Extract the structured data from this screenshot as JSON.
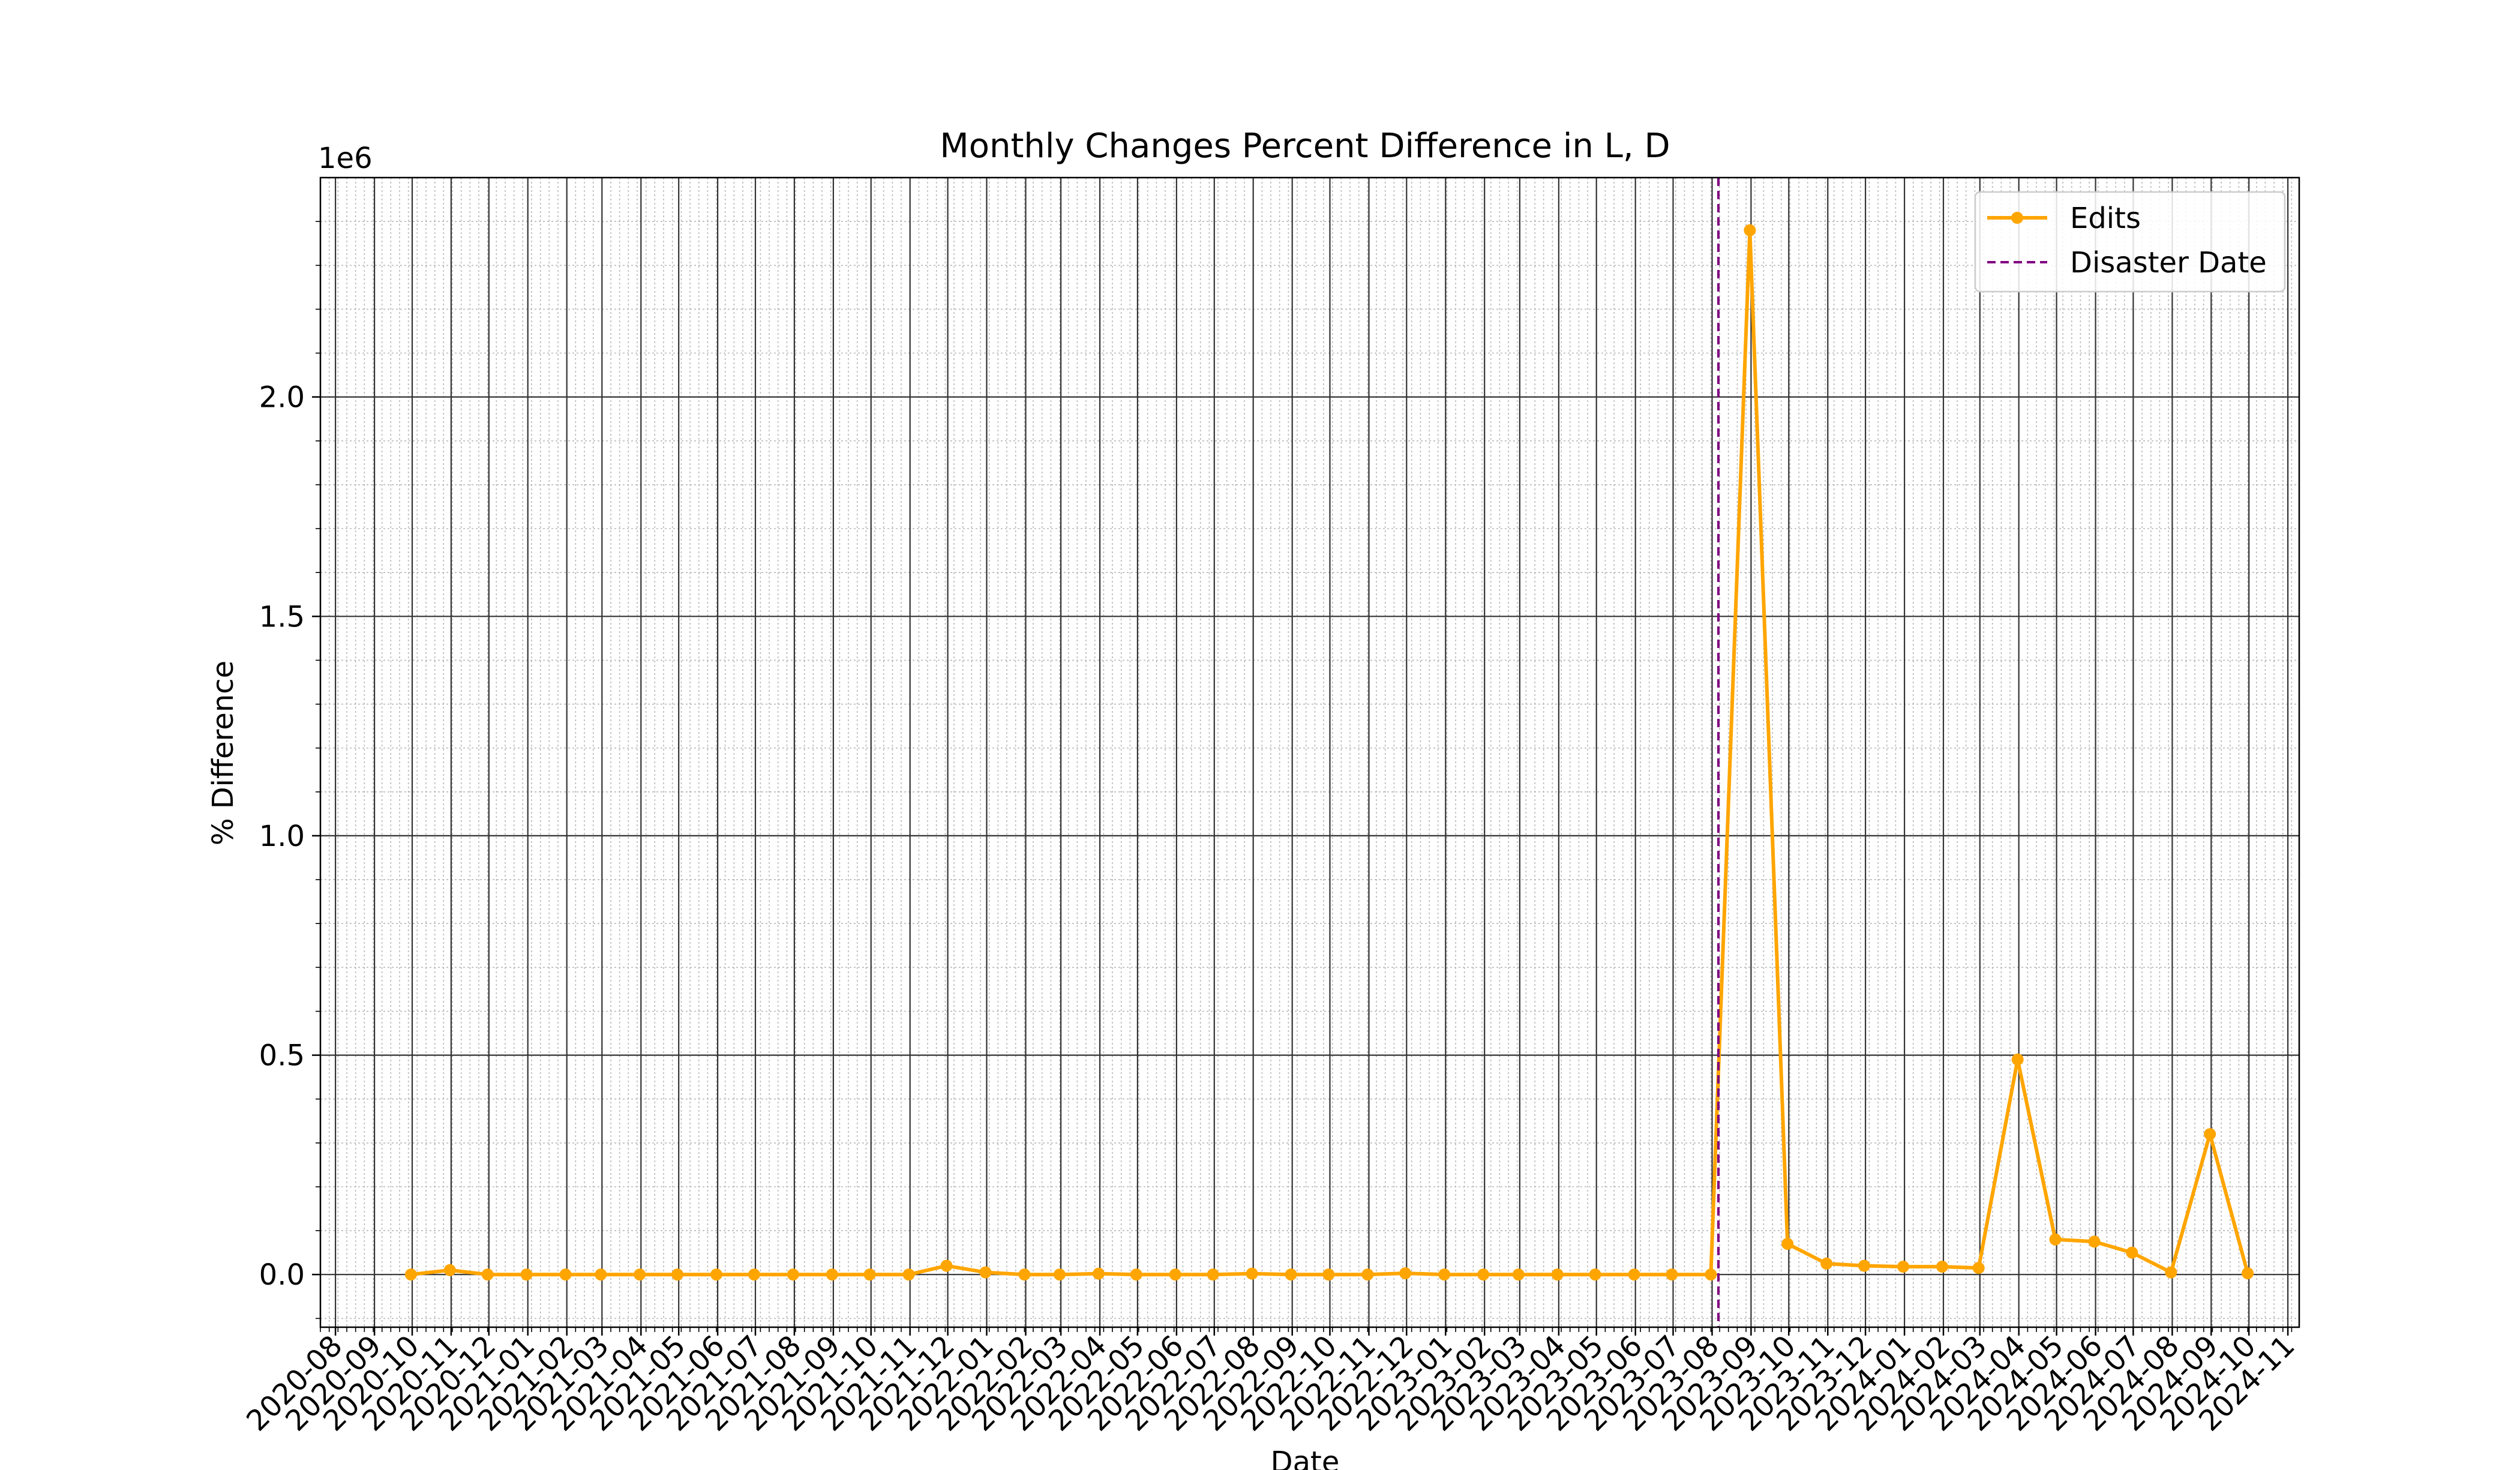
{
  "chart_data": {
    "type": "line",
    "title": "Monthly Changes Percent Difference in L, D",
    "xlabel": "Date",
    "ylabel": "% Difference",
    "y_offset_label": "1e6",
    "y_scale_factor": 1000000,
    "xlim": [
      "2020-07-20",
      "2024-11-10"
    ],
    "ylim": [
      -0.12,
      2.5
    ],
    "grid": true,
    "minor_grid": true,
    "legend_position": "top-right",
    "x_tick_labels": [
      "2020-08",
      "2020-09",
      "2020-10",
      "2020-11",
      "2020-12",
      "2021-01",
      "2021-02",
      "2021-03",
      "2021-04",
      "2021-05",
      "2021-06",
      "2021-07",
      "2021-08",
      "2021-09",
      "2021-10",
      "2021-11",
      "2021-12",
      "2022-01",
      "2022-02",
      "2022-03",
      "2022-04",
      "2022-05",
      "2022-06",
      "2022-07",
      "2022-08",
      "2022-09",
      "2022-10",
      "2022-11",
      "2022-12",
      "2023-01",
      "2023-02",
      "2023-03",
      "2023-04",
      "2023-05",
      "2023-06",
      "2023-07",
      "2023-08",
      "2023-09",
      "2023-10",
      "2023-11",
      "2023-12",
      "2024-01",
      "2024-02",
      "2024-03",
      "2024-04",
      "2024-05",
      "2024-06",
      "2024-07",
      "2024-08",
      "2024-09",
      "2024-10",
      "2024-11"
    ],
    "y_ticks": [
      0.0,
      0.5,
      1.0,
      1.5,
      2.0
    ],
    "y_tick_labels": [
      "0.0",
      "0.5",
      "1.0",
      "1.5",
      "2.0"
    ],
    "series": [
      {
        "name": "Edits",
        "color": "#FFA500",
        "marker": "circle",
        "x": [
          "2020-09-30",
          "2020-10-31",
          "2020-11-30",
          "2020-12-31",
          "2021-01-31",
          "2021-02-28",
          "2021-03-31",
          "2021-04-30",
          "2021-05-31",
          "2021-06-30",
          "2021-07-31",
          "2021-08-31",
          "2021-09-30",
          "2021-10-31",
          "2021-11-30",
          "2021-12-31",
          "2022-01-31",
          "2022-02-28",
          "2022-03-31",
          "2022-04-30",
          "2022-05-31",
          "2022-06-30",
          "2022-07-31",
          "2022-08-31",
          "2022-09-30",
          "2022-10-31",
          "2022-11-30",
          "2022-12-31",
          "2023-01-31",
          "2023-02-28",
          "2023-03-31",
          "2023-04-30",
          "2023-05-31",
          "2023-06-30",
          "2023-07-31",
          "2023-08-31",
          "2023-09-30",
          "2023-10-31",
          "2023-11-30",
          "2023-12-31",
          "2024-01-31",
          "2024-02-29",
          "2024-03-31",
          "2024-04-30",
          "2024-05-31",
          "2024-06-30",
          "2024-07-31",
          "2024-08-31",
          "2024-09-30"
        ],
        "y": [
          0.0,
          0.01,
          0.0,
          0.0,
          0.0,
          0.0,
          0.0,
          0.0,
          0.0,
          0.0,
          0.0,
          0.0,
          0.0,
          0.0,
          0.02,
          0.005,
          0.0,
          0.0,
          0.002,
          0.0,
          0.0,
          0.0,
          0.002,
          0.0,
          0.0,
          0.0,
          0.003,
          0.0,
          0.0,
          0.0,
          0.0,
          0.0,
          0.0,
          0.0,
          0.0,
          2.38,
          0.07,
          0.025,
          0.02,
          0.018,
          0.018,
          0.015,
          0.49,
          0.08,
          0.075,
          0.05,
          0.005,
          0.32,
          0.003
        ]
      }
    ],
    "vlines": [
      {
        "name": "Disaster Date",
        "x": "2023-08-06",
        "color": "#800080",
        "style": "dashed"
      }
    ]
  }
}
